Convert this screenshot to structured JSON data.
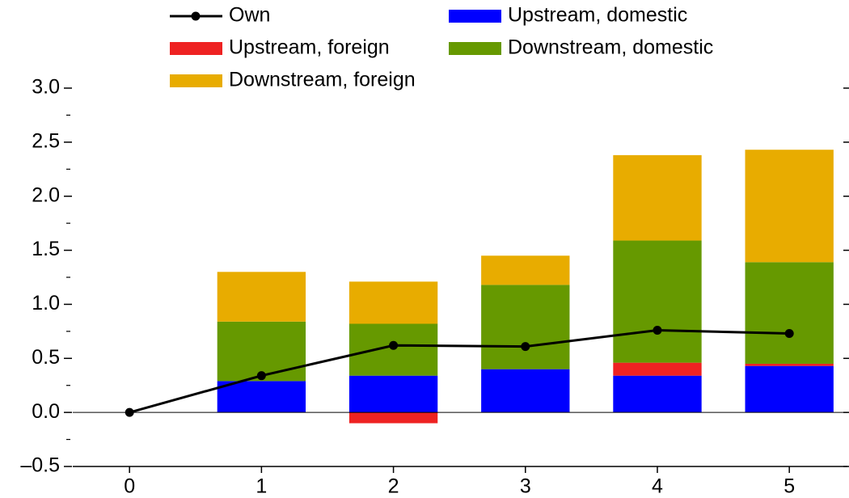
{
  "chart_data": {
    "type": "bar",
    "x": [
      0,
      1,
      2,
      3,
      4,
      5
    ],
    "series": [
      {
        "name": "Own",
        "type": "line",
        "color": "#000000",
        "values": [
          0,
          0.34,
          0.62,
          0.61,
          0.76,
          0.73
        ]
      },
      {
        "name": "Upstream, domestic",
        "color": "#0000ff",
        "values": [
          null,
          0.29,
          0.34,
          0.4,
          0.34,
          0.43
        ]
      },
      {
        "name": "Upstream, foreign",
        "color": "#ee2222",
        "values": [
          null,
          0,
          -0.1,
          0,
          0.12,
          0.02
        ]
      },
      {
        "name": "Downstream, domestic",
        "color": "#669900",
        "values": [
          null,
          0.55,
          0.48,
          0.78,
          1.13,
          0.94
        ]
      },
      {
        "name": "Downstream, foreign",
        "color": "#e8ac00",
        "values": [
          null,
          0.46,
          0.39,
          0.27,
          0.79,
          1.04
        ]
      }
    ],
    "xlim": [
      -0.43,
      5.44
    ],
    "ylim": [
      -0.5,
      3.0
    ],
    "xticks": [
      0,
      1,
      2,
      3,
      4,
      5
    ],
    "yticks": [
      {
        "value": -0.5,
        "label": "–0.5"
      },
      {
        "value": 0,
        "label": "0.0"
      },
      0.5,
      {
        "value": 1,
        "label": "1.0"
      },
      1.5,
      {
        "value": 2,
        "label": "2.0"
      },
      2.5,
      {
        "value": 3,
        "label": "3.0"
      }
    ],
    "yminorticks": [
      -0.25,
      0.25,
      0.75,
      1.25,
      1.75,
      2.25,
      2.75
    ],
    "legend": "top"
  }
}
